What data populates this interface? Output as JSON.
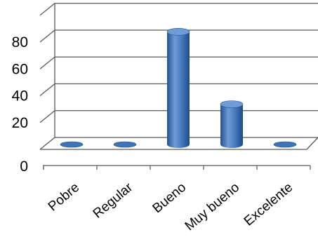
{
  "chart_data": {
    "type": "bar",
    "style": "3d-cylinder",
    "categories": [
      "Pobre",
      "Regular",
      "Bueno",
      "Muy bueno",
      "Excelente"
    ],
    "values": [
      0,
      0,
      84,
      30,
      0
    ],
    "ylim": [
      0,
      100
    ],
    "yticks": [
      "0",
      "20",
      "40",
      "60",
      "80"
    ],
    "ytick_values": [
      0,
      20,
      40,
      60,
      80
    ],
    "grid": true,
    "legend": "none",
    "bar_color": "#3f74b8",
    "bar_color_light": "#6f9bd6",
    "bar_color_dark": "#24508f",
    "grid_color": "#595959"
  }
}
